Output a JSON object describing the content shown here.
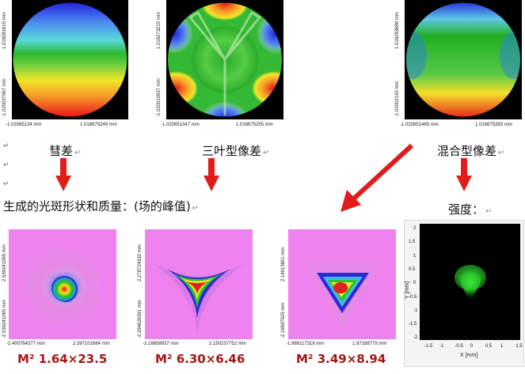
{
  "top_maps": [
    {
      "name": "coma",
      "y_max": "1.018281615 mm",
      "y_min": "-1.020037967 mm",
      "x_min": "-1.02065134 mm",
      "x_max": "1.018675249 mm"
    },
    {
      "name": "trefoil",
      "y_max": "1.018273215 mm",
      "y_min": "-1.020010937 mm",
      "x_min": "-1.020651347 mm",
      "x_max": "1.018675255 mm"
    },
    {
      "name": "mixed",
      "y_max": "1.018283688 mm",
      "y_min": "-1.02002143 mm",
      "x_min": "-1.020651485 mm",
      "x_max": "1.018675393 mm"
    }
  ],
  "captions": {
    "coma": "彗差",
    "trefoil": "三叶型像差",
    "mixed": "混合型像差",
    "generated": "生成的光斑形状和质量：(场的峰值)",
    "intensity": "强度："
  },
  "paragraph_mark": "↵",
  "bottom_maps": [
    {
      "y_max": "2.539241065 mm",
      "y_min": "-2.539241065 mm",
      "x_min": "-2.400764377 mm",
      "x_max": "2.397101884 mm",
      "m2": "M² 1.64×23.5"
    },
    {
      "y_max": "2.278724332 mm",
      "y_min": "-2.294626391 mm",
      "x_min": "-2.16658937 mm",
      "x_max": "2.150237752 mm",
      "m2": "M² 6.30×6.46"
    },
    {
      "y_max": "2.14913601 mm",
      "y_min": "-2.16547925 mm",
      "x_min": "-1.988117319 mm",
      "x_max": "1.97188779 mm",
      "m2": "M² 3.49×8.94"
    }
  ],
  "intensity_plot": {
    "y_label": "Y [mm]",
    "x_label": "X [mm]",
    "y_ticks": [
      "2",
      "1.5",
      "1",
      "0.5",
      "0",
      "-0.5",
      "-1",
      "-1.5",
      "-2"
    ],
    "x_ticks": [
      "-1.5",
      "-1",
      "-0.5",
      "0",
      "0.5",
      "1",
      "1.5"
    ]
  },
  "colors": {
    "arrow": "#e21b1b",
    "m2_text": "#a31616",
    "field_bg": "#ee82ee"
  }
}
